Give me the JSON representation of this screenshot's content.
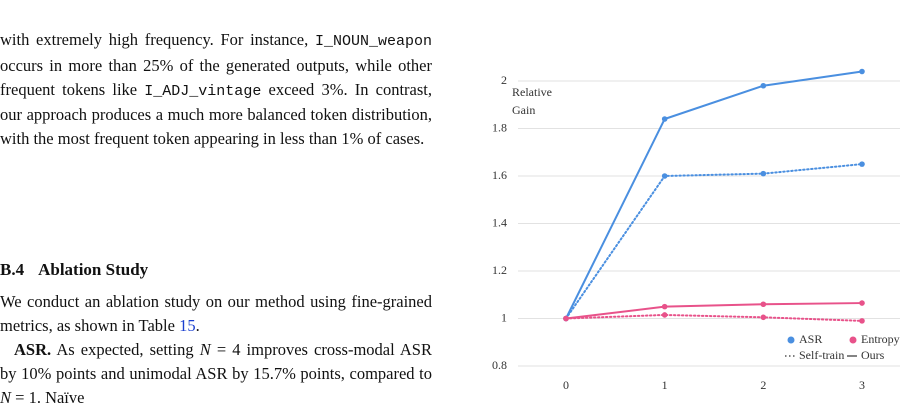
{
  "section": {
    "paragraph_1": [
      {
        "text": "with extremely high frequency.  For instance, "
      },
      {
        "text": "I_NOUN_weapon",
        "style": "mono"
      },
      {
        "text": " occurs in more than 25% of the generated outputs, while other frequent tokens like "
      },
      {
        "text": "I_ADJ_vintage",
        "style": "mono"
      },
      {
        "text": " exceed 3%. In contrast, our approach produces a much more balanced token distribution, with the most frequent token appearing in less than 1% of cases."
      }
    ],
    "heading": {
      "number": "B.4",
      "title": "Ablation Study"
    },
    "paragraph_2": [
      {
        "text": "We conduct an ablation study on our method using fine-grained metrics, as shown in Table "
      },
      {
        "text": "15",
        "style": "link"
      },
      {
        "text": "."
      }
    ],
    "paragraph_3": [
      {
        "text": "ASR.",
        "style": "bold"
      },
      {
        "text": " As expected, setting "
      },
      {
        "text": "N",
        "style": "italic"
      },
      {
        "text": " = 4 improves cross-modal ASR by 10% points and unimodal ASR by 15.7% points, compared to "
      },
      {
        "text": "N",
        "style": "italic"
      },
      {
        "text": " = 1. Naïve"
      }
    ]
  },
  "chart_data": {
    "type": "line",
    "y_label": [
      "Relative",
      "Gain"
    ],
    "x": [
      0,
      1,
      2,
      3
    ],
    "xticks": [
      0,
      1,
      2,
      3
    ],
    "xlim": [
      -0.35,
      3.35
    ],
    "ylim": [
      0.8,
      2.1
    ],
    "yticks": [
      0.8,
      1,
      1.2,
      1.4,
      1.6,
      1.8,
      2
    ],
    "grid": true,
    "legend": "lower right",
    "line_styles": {
      "self_train": {
        "name": "Self-train",
        "dash": "1.5 2.5"
      },
      "ours": {
        "name": "Ours",
        "dash": "none"
      }
    },
    "series": [
      {
        "name": "ASR",
        "color": "#4a8fe0",
        "self_train": [
          1,
          1.6,
          1.61,
          1.65
        ],
        "ours": [
          1,
          1.84,
          1.98,
          2.04
        ]
      },
      {
        "name": "Entropy",
        "color": "#e8528a",
        "self_train": [
          1,
          1.015,
          1.005,
          0.99
        ],
        "ours": [
          1,
          1.05,
          1.06,
          1.065
        ]
      }
    ]
  }
}
